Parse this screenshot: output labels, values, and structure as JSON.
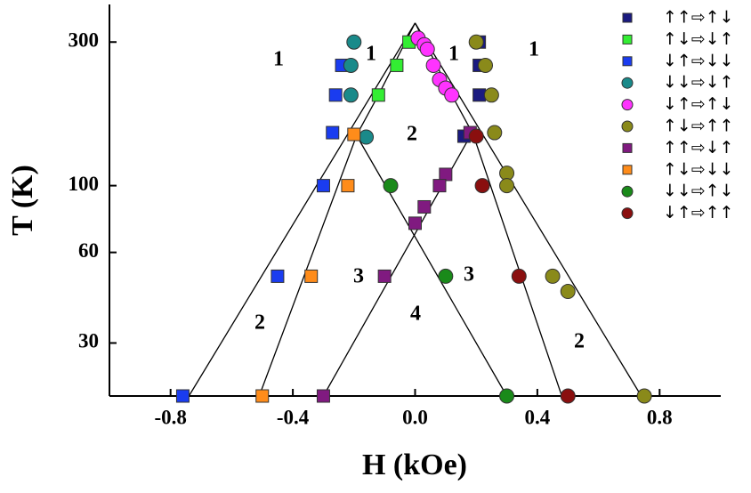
{
  "chart_data": {
    "type": "scatter",
    "x_label": "H (kOe)",
    "y_label": "T (K)",
    "xlim": [
      -1,
      1
    ],
    "xticks": [
      -0.8,
      -0.4,
      {
        "value": 0,
        "label": "0.0"
      },
      0.4,
      0.8
    ],
    "ylim": [
      20,
      400
    ],
    "yticks": [
      30,
      60,
      100,
      300
    ],
    "y_scale": "log",
    "legend": "upper right",
    "series": [
      {
        "name": "↑↑⇨↑↓",
        "color": "#1a1a80",
        "marker": "square",
        "x": [
          0.21,
          0.21,
          0.21,
          0.16
        ],
        "y": [
          300,
          251,
          200,
          146
        ]
      },
      {
        "name": "↑↓⇨↓↑",
        "color": "#33ee33",
        "marker": "square",
        "x": [
          -0.02,
          -0.06,
          -0.12
        ],
        "y": [
          300,
          251,
          200
        ]
      },
      {
        "name": "↓↑⇨↓↓",
        "color": "#1a3cf0",
        "marker": "square",
        "x": [
          -0.24,
          -0.26,
          -0.27,
          -0.3,
          -0.45,
          -0.76
        ],
        "y": [
          251,
          200,
          150,
          100,
          50,
          20
        ]
      },
      {
        "name": "↓↓⇨↓↑",
        "color": "#1a8a8a",
        "marker": "circle",
        "x": [
          -0.2,
          -0.21,
          -0.21,
          -0.16
        ],
        "y": [
          300,
          251,
          200,
          145
        ]
      },
      {
        "name": "↓↑⇨↑↓",
        "color": "#ff33ff",
        "marker": "circle",
        "x": [
          0.01,
          0.03,
          0.04,
          0.06,
          0.08,
          0.1,
          0.12
        ],
        "y": [
          309,
          294,
          284,
          251,
          225,
          211,
          200
        ]
      },
      {
        "name": "↑↓⇨↑↑",
        "color": "#8a8a1a",
        "marker": "circle",
        "x": [
          0.2,
          0.23,
          0.25,
          0.26,
          0.3,
          0.3,
          0.45,
          0.5,
          0.75
        ],
        "y": [
          300,
          251,
          200,
          150,
          110,
          100,
          50,
          44.5,
          20
        ]
      },
      {
        "name": "↑↑⇨↓↑",
        "color": "#801a80",
        "marker": "square",
        "x": [
          0.18,
          0.1,
          0.08,
          0.03,
          0.0,
          -0.1,
          -0.3
        ],
        "y": [
          150,
          109,
          100,
          85,
          75,
          50,
          20
        ]
      },
      {
        "name": "↑↓⇨↓↓",
        "color": "#ff8c1a",
        "marker": "square",
        "x": [
          -0.2,
          -0.22,
          -0.34,
          -0.5
        ],
        "y": [
          148,
          100,
          50,
          20
        ]
      },
      {
        "name": "↓↓⇨↑↓",
        "color": "#1a8a1a",
        "marker": "circle",
        "x": [
          -0.08,
          0.1,
          0.3
        ],
        "y": [
          100,
          50,
          20
        ]
      },
      {
        "name": "↓↑⇨↑↑",
        "color": "#8a0f0f",
        "marker": "circle",
        "x": [
          0.2,
          0.22,
          0.34,
          0.5
        ],
        "y": [
          146,
          100,
          50,
          20
        ]
      }
    ],
    "lines": [
      {
        "x": [
          -0.74,
          0.0
        ],
        "y": [
          20,
          347
        ]
      },
      {
        "x": [
          0.74,
          0.0
        ],
        "y": [
          20,
          347
        ]
      },
      {
        "x": [
          -0.51,
          -0.19,
          -0.12,
          0.0
        ],
        "y": [
          20,
          148,
          200,
          347
        ]
      },
      {
        "x": [
          0.48,
          0.19,
          0.12,
          0.0
        ],
        "y": [
          20,
          148,
          200,
          347
        ]
      },
      {
        "x": [
          -0.3,
          0.19
        ],
        "y": [
          20,
          152
        ]
      },
      {
        "x": [
          0.3,
          -0.2
        ],
        "y": [
          20,
          152
        ]
      }
    ],
    "annotations": [
      "1",
      "1",
      "1",
      "1",
      "2",
      "2",
      "2",
      "3",
      "3",
      "4"
    ]
  }
}
